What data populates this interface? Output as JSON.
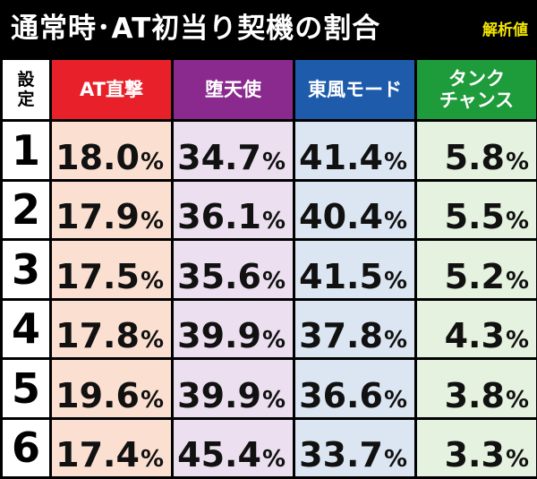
{
  "header": {
    "title": "通常時･AT初当り契機の割合",
    "badge": "解析値"
  },
  "colors": {
    "col_headers": [
      "#e8202a",
      "#8a2a8e",
      "#1e5bab",
      "#1e9b3a"
    ],
    "col_cells": [
      "#fbe0d2",
      "#ebdff0",
      "#dce6f2",
      "#e5f2df"
    ]
  },
  "chart_data": {
    "type": "table",
    "row_header_label": [
      "設",
      "定"
    ],
    "columns": [
      "AT直撃",
      "堕天使",
      "東風モード",
      "タンク\nチャンス"
    ],
    "rows": [
      {
        "setting": "1",
        "values": [
          "18.0",
          "34.7",
          "41.4",
          "5.8"
        ]
      },
      {
        "setting": "2",
        "values": [
          "17.9",
          "36.1",
          "40.4",
          "5.5"
        ]
      },
      {
        "setting": "3",
        "values": [
          "17.5",
          "35.6",
          "41.5",
          "5.2"
        ]
      },
      {
        "setting": "4",
        "values": [
          "17.8",
          "39.9",
          "37.8",
          "4.3"
        ]
      },
      {
        "setting": "5",
        "values": [
          "19.6",
          "39.9",
          "36.6",
          "3.8"
        ]
      },
      {
        "setting": "6",
        "values": [
          "17.4",
          "45.4",
          "33.7",
          "3.3"
        ]
      }
    ],
    "unit": "%"
  }
}
